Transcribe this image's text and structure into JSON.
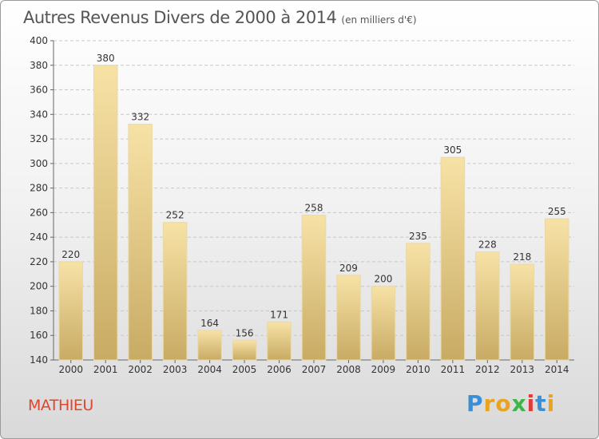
{
  "header": {
    "title": "Autres Revenus Divers de 2000 à 2014",
    "unit": "(en milliers d'€)"
  },
  "footer": {
    "commune": "MATHIEU",
    "logo": [
      "P",
      "r",
      "o",
      "x",
      "i",
      "t",
      "i"
    ],
    "logo_colors": [
      "#3a8fd6",
      "#e8a321",
      "#e8a321",
      "#3db54a",
      "#e03b3b",
      "#3a8fd6",
      "#e8a321"
    ]
  },
  "chart_data": {
    "type": "bar",
    "title": "Autres Revenus Divers de 2000 à 2014",
    "categories": [
      "2000",
      "2001",
      "2002",
      "2003",
      "2004",
      "2005",
      "2006",
      "2007",
      "2008",
      "2009",
      "2010",
      "2011",
      "2012",
      "2013",
      "2014"
    ],
    "values": [
      220,
      380,
      332,
      252,
      164,
      156,
      171,
      258,
      209,
      200,
      235,
      305,
      228,
      218,
      255
    ],
    "ylim": [
      140,
      400
    ],
    "yticks": [
      140,
      160,
      180,
      200,
      220,
      240,
      260,
      280,
      300,
      320,
      340,
      360,
      380,
      400
    ],
    "grid": true,
    "bar_color_top": "#f7e2a6",
    "bar_color_bottom": "#c8ab64"
  }
}
